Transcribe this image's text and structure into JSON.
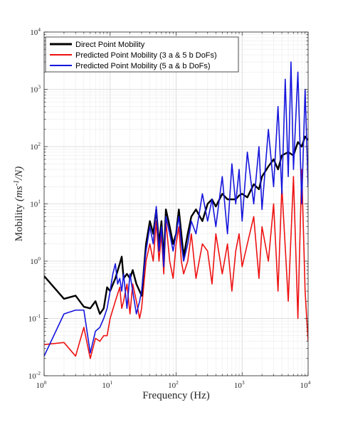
{
  "chart_data": {
    "type": "line",
    "xscale": "log",
    "yscale": "log",
    "xlim": [
      1,
      10000
    ],
    "ylim": [
      0.01,
      10000
    ],
    "grid": true,
    "legend_position": "top-left",
    "xlabel": "Frequency (Hz)",
    "ylabel": "Mobility ",
    "ylabel_math": "(ms",
    "ylabel_sup": "-1",
    "ylabel_tail": "/N)",
    "x_ticks": [
      {
        "base": "10",
        "exp": "0"
      },
      {
        "base": "10",
        "exp": "1"
      },
      {
        "base": "10",
        "exp": "2"
      },
      {
        "base": "10",
        "exp": "3"
      },
      {
        "base": "10",
        "exp": "4"
      }
    ],
    "y_ticks": [
      {
        "base": "10",
        "exp": "-2"
      },
      {
        "base": "10",
        "exp": "-1"
      },
      {
        "base": "10",
        "exp": "0"
      },
      {
        "base": "10",
        "exp": "1"
      },
      {
        "base": "10",
        "exp": "2"
      },
      {
        "base": "10",
        "exp": "3"
      },
      {
        "base": "10",
        "exp": "4"
      }
    ],
    "series": [
      {
        "name": "Direct Point Mobility",
        "color": "#000000",
        "width": 2.4,
        "points": [
          [
            1,
            0.55
          ],
          [
            2,
            0.22
          ],
          [
            3,
            0.25
          ],
          [
            4,
            0.16
          ],
          [
            5,
            0.15
          ],
          [
            6,
            0.2
          ],
          [
            7,
            0.12
          ],
          [
            8,
            0.15
          ],
          [
            9,
            0.35
          ],
          [
            10,
            0.3
          ],
          [
            12,
            0.5
          ],
          [
            14,
            0.9
          ],
          [
            15,
            1.2
          ],
          [
            16,
            0.5
          ],
          [
            18,
            0.6
          ],
          [
            20,
            0.5
          ],
          [
            22,
            0.7
          ],
          [
            25,
            0.4
          ],
          [
            28,
            0.3
          ],
          [
            30,
            0.25
          ],
          [
            35,
            2
          ],
          [
            40,
            5
          ],
          [
            45,
            3
          ],
          [
            50,
            8
          ],
          [
            55,
            2
          ],
          [
            60,
            5
          ],
          [
            65,
            1
          ],
          [
            70,
            8
          ],
          [
            80,
            4
          ],
          [
            90,
            2
          ],
          [
            100,
            3
          ],
          [
            110,
            8
          ],
          [
            120,
            3
          ],
          [
            130,
            1.2
          ],
          [
            150,
            3
          ],
          [
            170,
            6
          ],
          [
            200,
            8
          ],
          [
            250,
            5
          ],
          [
            300,
            10
          ],
          [
            350,
            12
          ],
          [
            400,
            9
          ],
          [
            500,
            15
          ],
          [
            600,
            12
          ],
          [
            700,
            12
          ],
          [
            800,
            12
          ],
          [
            900,
            14
          ],
          [
            1000,
            15
          ],
          [
            1200,
            13
          ],
          [
            1500,
            22
          ],
          [
            1800,
            18
          ],
          [
            2000,
            30
          ],
          [
            2500,
            45
          ],
          [
            3000,
            60
          ],
          [
            3500,
            40
          ],
          [
            4000,
            70
          ],
          [
            5000,
            80
          ],
          [
            6000,
            70
          ],
          [
            7000,
            120
          ],
          [
            8000,
            100
          ],
          [
            9000,
            150
          ],
          [
            10000,
            130
          ]
        ]
      },
      {
        "name": "Predicted Point Mobility (3 a & 5 b DoFs)",
        "color": "#ee1111",
        "width": 1.6,
        "points": [
          [
            1,
            0.035
          ],
          [
            2,
            0.038
          ],
          [
            3,
            0.022
          ],
          [
            4,
            0.07
          ],
          [
            5,
            0.02
          ],
          [
            6,
            0.045
          ],
          [
            7,
            0.04
          ],
          [
            8,
            0.05
          ],
          [
            9,
            0.05
          ],
          [
            10,
            0.1
          ],
          [
            12,
            0.2
          ],
          [
            14,
            0.35
          ],
          [
            15,
            0.15
          ],
          [
            16,
            0.2
          ],
          [
            18,
            0.4
          ],
          [
            20,
            0.12
          ],
          [
            22,
            0.4
          ],
          [
            25,
            0.2
          ],
          [
            28,
            0.1
          ],
          [
            30,
            0.15
          ],
          [
            35,
            1
          ],
          [
            40,
            2
          ],
          [
            45,
            1
          ],
          [
            50,
            5
          ],
          [
            55,
            1
          ],
          [
            60,
            3
          ],
          [
            65,
            0.6
          ],
          [
            70,
            5
          ],
          [
            80,
            1
          ],
          [
            90,
            0.5
          ],
          [
            100,
            2
          ],
          [
            110,
            4
          ],
          [
            120,
            1
          ],
          [
            130,
            0.6
          ],
          [
            150,
            1
          ],
          [
            170,
            3
          ],
          [
            200,
            0.5
          ],
          [
            250,
            2
          ],
          [
            300,
            1.5
          ],
          [
            350,
            0.4
          ],
          [
            400,
            3
          ],
          [
            500,
            0.6
          ],
          [
            600,
            2
          ],
          [
            700,
            0.3
          ],
          [
            800,
            1.5
          ],
          [
            900,
            3
          ],
          [
            1000,
            0.8
          ],
          [
            1200,
            2
          ],
          [
            1500,
            6
          ],
          [
            1800,
            0.5
          ],
          [
            2000,
            4
          ],
          [
            2500,
            1
          ],
          [
            3000,
            10
          ],
          [
            3500,
            0.3
          ],
          [
            4000,
            20
          ],
          [
            5000,
            0.2
          ],
          [
            6000,
            30
          ],
          [
            7000,
            0.1
          ],
          [
            8000,
            40
          ],
          [
            9000,
            0.3
          ],
          [
            10000,
            0.04
          ]
        ]
      },
      {
        "name": "Predicted Point Mobility (5 a & b DoFs)",
        "color": "#1515dd",
        "width": 1.6,
        "points": [
          [
            1,
            0.022
          ],
          [
            2,
            0.12
          ],
          [
            3,
            0.14
          ],
          [
            4,
            0.14
          ],
          [
            5,
            0.025
          ],
          [
            6,
            0.06
          ],
          [
            7,
            0.07
          ],
          [
            8,
            0.1
          ],
          [
            9,
            0.15
          ],
          [
            10,
            0.3
          ],
          [
            11,
            0.6
          ],
          [
            12,
            0.9
          ],
          [
            13,
            0.4
          ],
          [
            14,
            0.5
          ],
          [
            15,
            0.3
          ],
          [
            16,
            0.6
          ],
          [
            18,
            0.15
          ],
          [
            20,
            0.6
          ],
          [
            22,
            0.3
          ],
          [
            25,
            0.12
          ],
          [
            28,
            0.2
          ],
          [
            30,
            0.3
          ],
          [
            35,
            1.5
          ],
          [
            40,
            4
          ],
          [
            45,
            2
          ],
          [
            50,
            9
          ],
          [
            55,
            1.5
          ],
          [
            60,
            4
          ],
          [
            65,
            0.8
          ],
          [
            70,
            6
          ],
          [
            80,
            3
          ],
          [
            90,
            1.5
          ],
          [
            100,
            3
          ],
          [
            110,
            6
          ],
          [
            120,
            2
          ],
          [
            130,
            1
          ],
          [
            150,
            2
          ],
          [
            170,
            5
          ],
          [
            200,
            3
          ],
          [
            250,
            15
          ],
          [
            300,
            5
          ],
          [
            350,
            12
          ],
          [
            400,
            4
          ],
          [
            500,
            30
          ],
          [
            600,
            3
          ],
          [
            700,
            50
          ],
          [
            800,
            10
          ],
          [
            900,
            40
          ],
          [
            1000,
            5
          ],
          [
            1200,
            80
          ],
          [
            1500,
            10
          ],
          [
            1800,
            100
          ],
          [
            2000,
            8
          ],
          [
            2500,
            200
          ],
          [
            3000,
            20
          ],
          [
            3500,
            500
          ],
          [
            4000,
            15
          ],
          [
            4500,
            1500
          ],
          [
            5000,
            30
          ],
          [
            5500,
            3000
          ],
          [
            6000,
            40
          ],
          [
            7000,
            2000
          ],
          [
            8000,
            10
          ],
          [
            9000,
            1000
          ],
          [
            10000,
            20
          ]
        ]
      }
    ]
  }
}
